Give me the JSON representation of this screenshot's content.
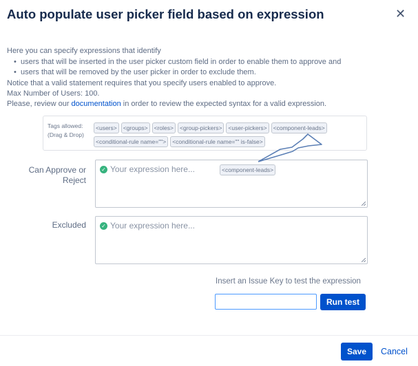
{
  "dialog": {
    "title": "Auto populate user picker field based on expression",
    "close_icon": "close-icon"
  },
  "intro": {
    "line1": "Here you can specify expressions that identify",
    "bullets": [
      "users that will be inserted in the user picker custom field in order to enable them to approve and",
      "users that will be removed by the user picker in order to exclude them."
    ],
    "notice": "Notice that a valid statement requires that you specify users enabled to approve.",
    "max_users": "Max Number of Users: 100.",
    "review_prefix": "Please, review our ",
    "review_link": "documentation",
    "review_suffix": " in order to review the expected syntax for a valid expression."
  },
  "tags": {
    "label1": "Tags allowed:",
    "label2": "(Drag & Drop)",
    "row1": [
      "<users>",
      "<groups>",
      "<roles>",
      "<group-pickers>",
      "<user-pickers>",
      "<component-leads>"
    ],
    "row2": [
      "<conditional-rule name=\"\">",
      "<conditional-rule name=\"\" is-false>"
    ]
  },
  "approve": {
    "label_line1": "Can Approve or",
    "label_line2": "Reject",
    "placeholder": "Your expression here...",
    "dragged_tag": "<component-leads>"
  },
  "excluded": {
    "label": "Excluded",
    "placeholder": "Your expression here..."
  },
  "test": {
    "label": "Insert an Issue Key to test the expression",
    "value": "",
    "button": "Run test"
  },
  "footer": {
    "save": "Save",
    "cancel": "Cancel"
  },
  "colors": {
    "primary": "#0052cc",
    "valid": "#36b37e",
    "arrow": "#5b7fb5"
  }
}
